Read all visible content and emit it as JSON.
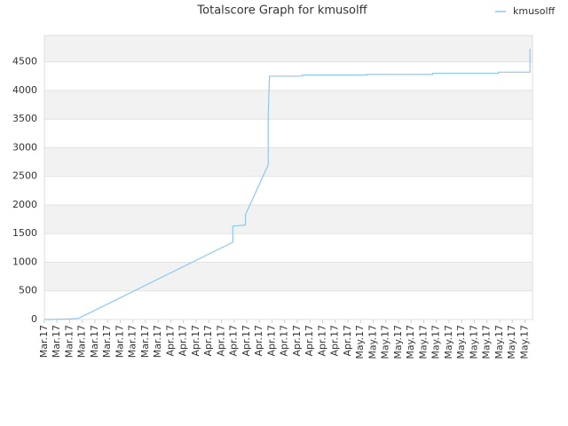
{
  "chart_data": {
    "type": "line",
    "title": "Totalscore Graph for kmusolff",
    "series": [
      {
        "name": "kmusolff",
        "color": "#8ec8f0",
        "x": [
          0,
          2,
          2.7,
          14.9,
          14.9,
          15.9,
          15.9,
          17.7,
          17.7,
          17.8,
          20.4,
          20.4,
          25.5,
          25.5,
          30.7,
          30.7,
          35.9,
          35.9,
          38.4,
          38.4
        ],
        "values": [
          0,
          10,
          20,
          1350,
          1630,
          1650,
          1830,
          2700,
          3550,
          4250,
          4250,
          4270,
          4270,
          4280,
          4280,
          4300,
          4300,
          4320,
          4320,
          4730
        ]
      }
    ],
    "xlim": [
      0,
      38.6
    ],
    "xticks": [
      {
        "value": 0,
        "label": "Mar.17"
      },
      {
        "value": 1,
        "label": "Mar.17"
      },
      {
        "value": 2,
        "label": "Mar.17"
      },
      {
        "value": 3,
        "label": "Mar.17"
      },
      {
        "value": 4,
        "label": "Mar.17"
      },
      {
        "value": 5,
        "label": "Mar.17"
      },
      {
        "value": 6,
        "label": "Mar.17"
      },
      {
        "value": 7,
        "label": "Mar.17"
      },
      {
        "value": 8,
        "label": "Mar.17"
      },
      {
        "value": 9,
        "label": "Mar.17"
      },
      {
        "value": 10,
        "label": "Apr.17"
      },
      {
        "value": 11,
        "label": "Apr.17"
      },
      {
        "value": 12,
        "label": "Apr.17"
      },
      {
        "value": 13,
        "label": "Apr.17"
      },
      {
        "value": 14,
        "label": "Apr.17"
      },
      {
        "value": 15,
        "label": "Apr.17"
      },
      {
        "value": 16,
        "label": "Apr.17"
      },
      {
        "value": 17,
        "label": "Apr.17"
      },
      {
        "value": 18,
        "label": "Apr.17"
      },
      {
        "value": 19,
        "label": "Apr.17"
      },
      {
        "value": 20,
        "label": "Apr.17"
      },
      {
        "value": 21,
        "label": "Apr.17"
      },
      {
        "value": 22,
        "label": "Apr.17"
      },
      {
        "value": 23,
        "label": "Apr.17"
      },
      {
        "value": 24,
        "label": "Apr.17"
      },
      {
        "value": 25,
        "label": "May.17"
      },
      {
        "value": 26,
        "label": "May.17"
      },
      {
        "value": 27,
        "label": "May.17"
      },
      {
        "value": 28,
        "label": "May.17"
      },
      {
        "value": 29,
        "label": "May.17"
      },
      {
        "value": 30,
        "label": "May.17"
      },
      {
        "value": 31,
        "label": "May.17"
      },
      {
        "value": 32,
        "label": "May.17"
      },
      {
        "value": 33,
        "label": "May.17"
      },
      {
        "value": 34,
        "label": "May.17"
      },
      {
        "value": 35,
        "label": "May.17"
      },
      {
        "value": 36,
        "label": "May.17"
      },
      {
        "value": 37,
        "label": "May.17"
      },
      {
        "value": 38,
        "label": "May.17"
      }
    ],
    "ylim": [
      0,
      4960
    ],
    "yticks": [
      0,
      500,
      1000,
      1500,
      2000,
      2500,
      3000,
      3500,
      4000,
      4500
    ],
    "grid": true,
    "legend": "top-right"
  }
}
